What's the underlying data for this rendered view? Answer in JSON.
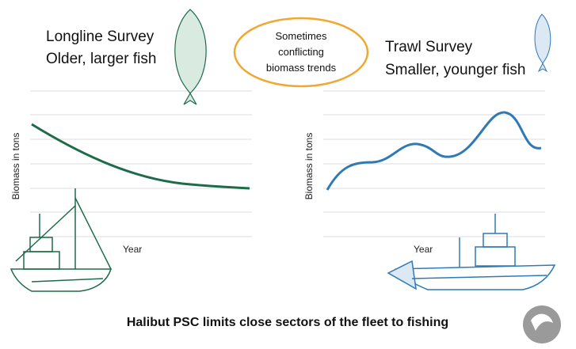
{
  "left": {
    "title": "Longline Survey",
    "subtitle": "Older, larger fish",
    "y_label": "Biomass in tons",
    "x_label": "Year"
  },
  "right": {
    "title": "Trawl Survey",
    "subtitle": "Smaller, younger fish",
    "y_label": "Biomass in tons",
    "x_label": "Year"
  },
  "callout": {
    "lines": [
      "Sometimes",
      "conflicting",
      "biomass trends"
    ]
  },
  "footer": "Halibut PSC limits close sectors of the fleet to fishing"
}
